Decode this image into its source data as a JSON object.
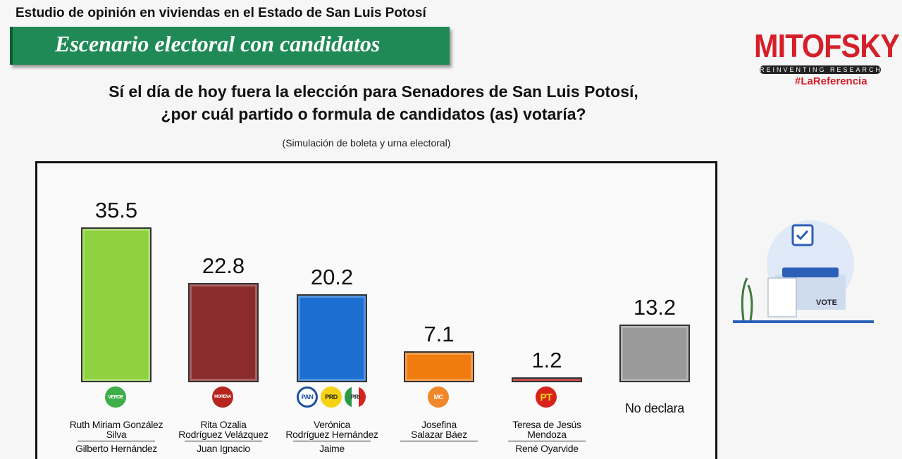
{
  "header": {
    "study": "Estudio de opinión en viviendas en el Estado de San Luis Potosí",
    "banner": "Escenario electoral con candidatos"
  },
  "logo": {
    "brand": "MITOFSKY",
    "tagline": "REINVENTING RESEARCH",
    "hashtag": "#LaReferencia",
    "color": "#d51f2a"
  },
  "illustration": {
    "label": "VOTE"
  },
  "chart_data": {
    "type": "bar",
    "title": "Sí el día de hoy fuera la elección para Senadores de San Luis Potosí, ¿por cuál partido o formula de candidatos (as) votaría?",
    "title_line1": "Sí el día de hoy fuera la elección para Senadores de San Luis Potosí,",
    "title_line2": "¿por cuál partido o formula de candidatos (as) votaría?",
    "subtitle": "(Simulación de boleta y urna electoral)",
    "ylim": [
      0,
      40
    ],
    "grid": false,
    "bars": [
      {
        "value": 35.5,
        "label": "35.5",
        "color": "#8fd13f",
        "parties": [
          "VERDE"
        ],
        "party_colors": [
          "#3fae49"
        ],
        "names": [
          "Ruth Miriam González",
          "Silva"
        ],
        "alt": "Gilberto Hernández"
      },
      {
        "value": 22.8,
        "label": "22.8",
        "color": "#8b2c2c",
        "parties": [
          "MORENA"
        ],
        "party_colors": [
          "#b5261e"
        ],
        "names": [
          "Rita Ozalia",
          "Rodríguez Velázquez"
        ],
        "alt": "Juan Ignacio"
      },
      {
        "value": 20.2,
        "label": "20.2",
        "color": "#1c6fd1",
        "parties": [
          "PAN",
          "PRD",
          "PRI"
        ],
        "party_colors": [
          "#1b4fa0",
          "#f5d312",
          "#2a9a45"
        ],
        "names": [
          "Verónica",
          "Rodríguez Hernández"
        ],
        "alt": "Jaime"
      },
      {
        "value": 7.1,
        "label": "7.1",
        "color": "#f07c10",
        "parties": [
          "MC"
        ],
        "party_colors": [
          "#f0882a"
        ],
        "names": [
          "Josefina",
          "Salazar Báez"
        ],
        "alt": ""
      },
      {
        "value": 1.2,
        "label": "1.2",
        "color": "#b01515",
        "parties": [
          "PT"
        ],
        "party_colors": [
          "#d8231c"
        ],
        "names": [
          "Teresa de Jesús",
          "Mendoza"
        ],
        "alt": "René Oyarvide"
      },
      {
        "value": 13.2,
        "label": "13.2",
        "color": "#9a9a9a",
        "parties": [],
        "party_colors": [],
        "names": [
          "No declara"
        ],
        "alt": ""
      }
    ]
  }
}
